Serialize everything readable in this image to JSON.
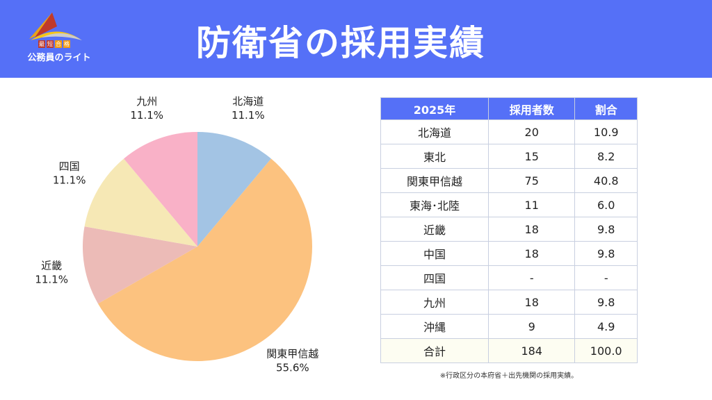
{
  "header": {
    "title": "防衛省の採用実績",
    "logo_tags": [
      "最",
      "短",
      "合",
      "格"
    ],
    "logo_text": "公務員のライト"
  },
  "colors": {
    "header": "#5570f7"
  },
  "chart_data": {
    "type": "pie",
    "title": "",
    "slices": [
      {
        "label": "北海道",
        "value": 11.1,
        "color": "#a3c4e4"
      },
      {
        "label": "関東甲信越",
        "value": 55.6,
        "color": "#fcc27f"
      },
      {
        "label": "近畿",
        "value": 11.1,
        "color": "#ecbbb7"
      },
      {
        "label": "四国",
        "value": 11.1,
        "color": "#f6e8b5"
      },
      {
        "label": "九州",
        "value": 11.1,
        "color": "#f9b1c7"
      }
    ],
    "labels_text": [
      "11.1%",
      "55.6%",
      "11.1%",
      "11.1%",
      "11.1%"
    ],
    "start": "top",
    "direction": "clockwise"
  },
  "table": {
    "headers": [
      "2025年",
      "採用者数",
      "割合"
    ],
    "rows": [
      [
        "北海道",
        "20",
        "10.9"
      ],
      [
        "東北",
        "15",
        "8.2"
      ],
      [
        "関東甲信越",
        "75",
        "40.8"
      ],
      [
        "東海･北陸",
        "11",
        "6.0"
      ],
      [
        "近畿",
        "18",
        "9.8"
      ],
      [
        "中国",
        "18",
        "9.8"
      ],
      [
        "四国",
        "-",
        "-"
      ],
      [
        "九州",
        "18",
        "9.8"
      ],
      [
        "沖縄",
        "9",
        "4.9"
      ]
    ],
    "total": [
      "合計",
      "184",
      "100.0"
    ]
  },
  "note": "※行政区分の本府省＋出先機関の採用実績。"
}
